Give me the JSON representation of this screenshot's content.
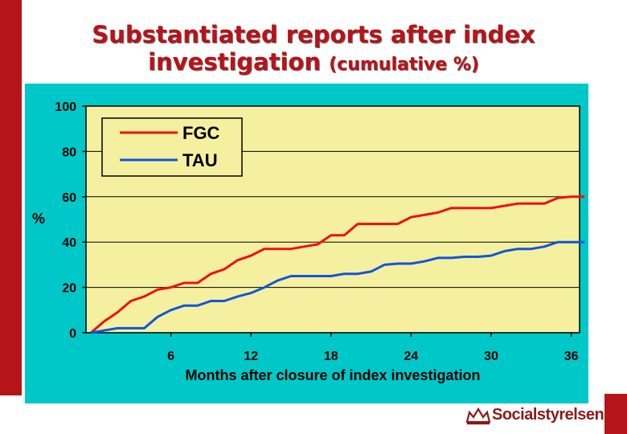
{
  "slide": {
    "title_line1": "Substantiated reports after index",
    "title_line2": "investigation",
    "title_suffix": "(cumulative %)",
    "brand": "Socialstyrelsen"
  },
  "colors": {
    "accent": "#b51419",
    "chart_background": "#00c8c8",
    "plot_area": "#f5f0a0",
    "fgc": "#ee1111",
    "tau": "#1155dd"
  },
  "chart_data": {
    "type": "line",
    "title": "",
    "xlabel": "Months after closure of index investigation",
    "ylabel": "%",
    "xlim": [
      0,
      38
    ],
    "ylim": [
      0,
      100
    ],
    "x_ticks": [
      6,
      12,
      18,
      24,
      30,
      36
    ],
    "y_ticks": [
      0,
      20,
      40,
      60,
      80,
      100
    ],
    "grid": "horizontal",
    "legend_position": "top-left",
    "series": [
      {
        "name": "FGC",
        "color": "#ee1111",
        "x": [
          0,
          1,
          2,
          3,
          4,
          5,
          6,
          7,
          8,
          9,
          10,
          11,
          12,
          13,
          14,
          15,
          16,
          17,
          18,
          19,
          20,
          21,
          22,
          23,
          24,
          25,
          26,
          27,
          28,
          29,
          30,
          31,
          32,
          33,
          34,
          35,
          36,
          37
        ],
        "values": [
          0,
          5,
          9,
          14,
          16,
          19,
          20,
          22,
          22,
          26,
          28,
          32,
          34,
          37,
          37,
          37,
          38,
          39,
          43,
          43,
          48,
          48,
          48,
          48,
          51,
          52,
          53,
          55,
          55,
          55,
          55,
          56,
          57,
          57,
          57,
          59.5,
          60,
          60
        ]
      },
      {
        "name": "TAU",
        "color": "#1155dd",
        "x": [
          0,
          1,
          2,
          3,
          4,
          5,
          6,
          7,
          8,
          9,
          10,
          11,
          12,
          13,
          14,
          15,
          16,
          17,
          18,
          19,
          20,
          21,
          22,
          23,
          24,
          25,
          26,
          27,
          28,
          29,
          30,
          31,
          32,
          33,
          34,
          35,
          36,
          37
        ],
        "values": [
          0,
          1,
          2,
          2,
          2,
          7,
          10,
          12,
          12,
          14,
          14,
          16,
          17.5,
          20,
          23,
          25,
          25,
          25,
          25,
          26,
          26,
          27,
          30,
          30.5,
          30.5,
          31.5,
          33,
          33,
          33.5,
          33.5,
          34,
          36,
          37,
          37,
          38,
          40,
          40,
          40
        ]
      }
    ]
  }
}
